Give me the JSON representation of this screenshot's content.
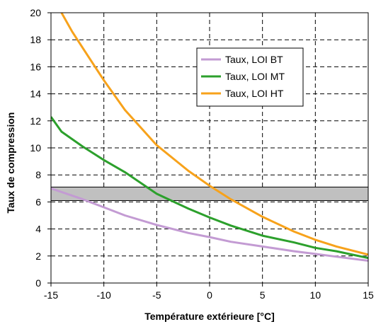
{
  "chart_data": {
    "type": "line",
    "title": "",
    "xlabel": "Température extérieure [°C]",
    "ylabel": "Taux de compression",
    "xlim": [
      -15,
      15
    ],
    "ylim": [
      0,
      20
    ],
    "x_ticks": [
      -15,
      -10,
      -5,
      0,
      5,
      10,
      15
    ],
    "y_ticks": [
      0,
      2,
      4,
      6,
      8,
      10,
      12,
      14,
      16,
      18,
      20
    ],
    "grid": true,
    "legend_position": "top-right",
    "series": [
      {
        "name": "Taux, LOI BT",
        "color": "#c39bd3",
        "x": [
          -15,
          -12,
          -10,
          -8,
          -5,
          -2,
          0,
          2,
          5,
          8,
          10,
          12,
          15
        ],
        "y": [
          7.0,
          6.2,
          5.6,
          5.0,
          4.3,
          3.7,
          3.4,
          3.05,
          2.7,
          2.35,
          2.15,
          1.95,
          1.65
        ]
      },
      {
        "name": "Taux, LOI MT",
        "color": "#2ca02c",
        "x": [
          -15,
          -14,
          -12,
          -10,
          -8,
          -5,
          -2,
          0,
          2,
          5,
          8,
          10,
          12,
          15
        ],
        "y": [
          12.3,
          11.2,
          10.1,
          9.1,
          8.2,
          6.6,
          5.5,
          4.85,
          4.25,
          3.5,
          3.0,
          2.6,
          2.35,
          1.85
        ]
      },
      {
        "name": "Taux, LOI HT",
        "color": "#f7a21b",
        "x": [
          -14,
          -13,
          -12,
          -10,
          -8,
          -5,
          -2,
          0,
          2,
          5,
          8,
          10,
          12,
          15
        ],
        "y": [
          20.0,
          18.6,
          17.4,
          15.0,
          12.8,
          10.2,
          8.3,
          7.2,
          6.2,
          4.9,
          3.8,
          3.2,
          2.7,
          2.1
        ]
      }
    ],
    "band": {
      "y_min": 6.1,
      "y_max": 7.1,
      "fill": "#c0c0c0",
      "stroke": "#000000"
    }
  }
}
